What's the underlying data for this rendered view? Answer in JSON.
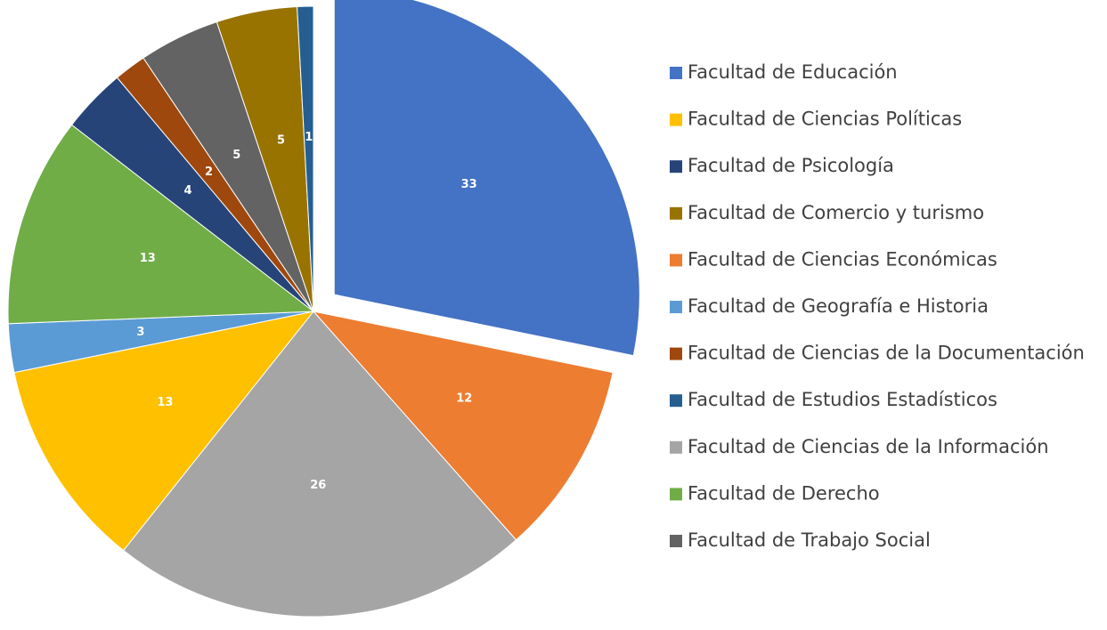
{
  "chart_data": {
    "type": "pie",
    "slices": [
      {
        "value": 33,
        "color": "#4472c4",
        "exploded": true
      },
      {
        "value": 12,
        "color": "#ed7d31"
      },
      {
        "value": 26,
        "color": "#a5a5a5"
      },
      {
        "value": 13,
        "color": "#ffc000"
      },
      {
        "value": 3,
        "color": "#5b9bd5"
      },
      {
        "value": 13,
        "color": "#70ad47"
      },
      {
        "value": 4,
        "color": "#264478"
      },
      {
        "value": 2,
        "color": "#9e480e"
      },
      {
        "value": 5,
        "color": "#636363"
      },
      {
        "value": 5,
        "color": "#997300"
      },
      {
        "value": 1,
        "color": "#255e91"
      }
    ],
    "legend": [
      {
        "name": "Facultad de Educación",
        "color": "#4472c4"
      },
      {
        "name": "Facultad de Ciencias Políticas",
        "color": "#ffc000"
      },
      {
        "name": "Facultad de Psicología",
        "color": "#264478"
      },
      {
        "name": "Facultad de Comercio y turismo",
        "color": "#997300"
      },
      {
        "name": "Facultad de Ciencias Económicas",
        "color": "#ed7d31"
      },
      {
        "name": "Facultad de Geografía e Historia",
        "color": "#5b9bd5"
      },
      {
        "name": "Facultad de Ciencias de la Documentación",
        "color": "#9e480e"
      },
      {
        "name": "Facultad de Estudios Estadísticos",
        "color": "#255e91"
      },
      {
        "name": "Facultad de Ciencias de la Información",
        "color": "#a5a5a5"
      },
      {
        "name": "Facultad de Derecho",
        "color": "#70ad47"
      },
      {
        "name": "Facultad de Trabajo Social",
        "color": "#636363"
      }
    ]
  }
}
